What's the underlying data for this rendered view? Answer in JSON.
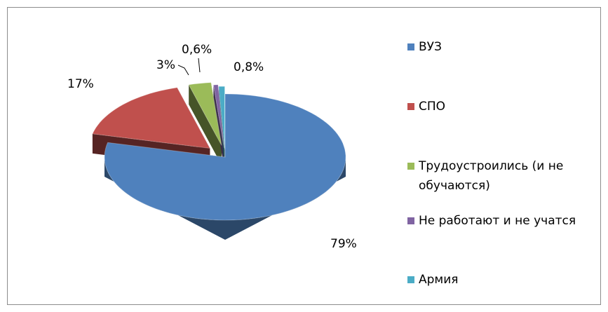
{
  "chart_data": {
    "type": "pie",
    "categories": [
      "ВУЗ",
      "СПО",
      "Трудоустроились (и не обучаются)",
      "Не работают и не учатся",
      "Армия"
    ],
    "values": [
      79,
      17,
      3,
      0.6,
      0.8
    ],
    "value_labels": [
      "79%",
      "17%",
      "3%",
      "0,6%",
      "0,8%"
    ],
    "colors": [
      "#4f81bd",
      "#c0504d",
      "#9bbb59",
      "#8064a2",
      "#4bacc6"
    ],
    "legend": "right"
  }
}
